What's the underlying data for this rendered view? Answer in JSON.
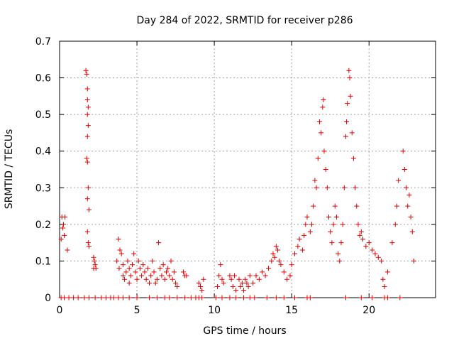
{
  "chart_data": {
    "type": "scatter",
    "title": "Day 284 of 2022, SRMTID for receiver p286",
    "xlabel": "GPS time / hours",
    "ylabel": "SRMTID / TECUs",
    "xlim": [
      0,
      24.3
    ],
    "ylim": [
      0,
      0.7
    ],
    "x_ticks": [
      0,
      5,
      10,
      15,
      20
    ],
    "y_ticks": [
      0,
      0.1,
      0.2,
      0.3,
      0.4,
      0.5,
      0.6,
      0.7
    ],
    "x_tick_labels": [
      "0",
      "5",
      "10",
      "15",
      "20"
    ],
    "y_tick_labels": [
      "0",
      "0.1",
      "0.2",
      "0.3",
      "0.4",
      "0.5",
      "0.6",
      "0.7"
    ],
    "grid": true,
    "marker": "+",
    "color": "#e00000",
    "series": [
      {
        "name": "p286",
        "points": [
          [
            0.1,
            0.16
          ],
          [
            0.15,
            0.22
          ],
          [
            0.2,
            0.19
          ],
          [
            0.25,
            0.2
          ],
          [
            0.3,
            0.17
          ],
          [
            0.35,
            0.22
          ],
          [
            0.5,
            0.13
          ],
          [
            1.7,
            0.62
          ],
          [
            1.75,
            0.61
          ],
          [
            1.8,
            0.57
          ],
          [
            1.8,
            0.54
          ],
          [
            1.85,
            0.52
          ],
          [
            1.8,
            0.5
          ],
          [
            1.85,
            0.47
          ],
          [
            1.8,
            0.44
          ],
          [
            1.75,
            0.38
          ],
          [
            1.8,
            0.37
          ],
          [
            1.85,
            0.3
          ],
          [
            1.8,
            0.27
          ],
          [
            1.9,
            0.24
          ],
          [
            1.8,
            0.18
          ],
          [
            1.85,
            0.15
          ],
          [
            1.9,
            0.14
          ],
          [
            2.2,
            0.11
          ],
          [
            2.25,
            0.1
          ],
          [
            2.3,
            0.09
          ],
          [
            2.35,
            0.08
          ],
          [
            2.2,
            0.08
          ],
          [
            3.7,
            0.1
          ],
          [
            3.8,
            0.16
          ],
          [
            3.9,
            0.13
          ],
          [
            3.85,
            0.08
          ],
          [
            4.0,
            0.12
          ],
          [
            4.1,
            0.09
          ],
          [
            4.1,
            0.06
          ],
          [
            4.2,
            0.05
          ],
          [
            4.3,
            0.07
          ],
          [
            4.4,
            0.1
          ],
          [
            4.5,
            0.08
          ],
          [
            4.5,
            0.04
          ],
          [
            4.6,
            0.06
          ],
          [
            4.7,
            0.09
          ],
          [
            4.8,
            0.12
          ],
          [
            4.9,
            0.07
          ],
          [
            5.0,
            0.05
          ],
          [
            5.1,
            0.1
          ],
          [
            5.2,
            0.08
          ],
          [
            5.3,
            0.06
          ],
          [
            5.4,
            0.09
          ],
          [
            5.5,
            0.07
          ],
          [
            5.6,
            0.05
          ],
          [
            5.7,
            0.08
          ],
          [
            5.8,
            0.04
          ],
          [
            5.9,
            0.06
          ],
          [
            6.0,
            0.1
          ],
          [
            6.1,
            0.07
          ],
          [
            6.2,
            0.04
          ],
          [
            6.3,
            0.05
          ],
          [
            6.4,
            0.15
          ],
          [
            6.5,
            0.08
          ],
          [
            6.6,
            0.06
          ],
          [
            6.7,
            0.09
          ],
          [
            6.8,
            0.05
          ],
          [
            6.9,
            0.07
          ],
          [
            7.0,
            0.08
          ],
          [
            7.1,
            0.06
          ],
          [
            7.2,
            0.1
          ],
          [
            7.3,
            0.05
          ],
          [
            7.4,
            0.07
          ],
          [
            7.5,
            0.04
          ],
          [
            7.6,
            0.03
          ],
          [
            8.0,
            0.07
          ],
          [
            8.1,
            0.06
          ],
          [
            8.2,
            0.06
          ],
          [
            9.0,
            0.04
          ],
          [
            9.1,
            0.03
          ],
          [
            9.2,
            0.02
          ],
          [
            9.3,
            0.05
          ],
          [
            10.2,
            0.03
          ],
          [
            10.3,
            0.06
          ],
          [
            10.4,
            0.09
          ],
          [
            10.5,
            0.05
          ],
          [
            10.6,
            0.04
          ],
          [
            11.0,
            0.06
          ],
          [
            11.1,
            0.05
          ],
          [
            11.2,
            0.03
          ],
          [
            11.3,
            0.06
          ],
          [
            11.4,
            0.02
          ],
          [
            11.6,
            0.05
          ],
          [
            11.7,
            0.03
          ],
          [
            11.8,
            0.04
          ],
          [
            11.9,
            0.02
          ],
          [
            12.0,
            0.05
          ],
          [
            12.1,
            0.04
          ],
          [
            12.2,
            0.03
          ],
          [
            12.3,
            0.06
          ],
          [
            12.5,
            0.04
          ],
          [
            12.7,
            0.06
          ],
          [
            12.9,
            0.05
          ],
          [
            13.1,
            0.07
          ],
          [
            13.3,
            0.06
          ],
          [
            13.5,
            0.08
          ],
          [
            13.7,
            0.1
          ],
          [
            13.8,
            0.12
          ],
          [
            13.9,
            0.11
          ],
          [
            14.0,
            0.14
          ],
          [
            14.1,
            0.13
          ],
          [
            14.2,
            0.1
          ],
          [
            14.3,
            0.09
          ],
          [
            14.5,
            0.07
          ],
          [
            14.7,
            0.05
          ],
          [
            14.9,
            0.06
          ],
          [
            15.0,
            0.09
          ],
          [
            15.2,
            0.12
          ],
          [
            15.4,
            0.14
          ],
          [
            15.5,
            0.16
          ],
          [
            15.7,
            0.13
          ],
          [
            15.8,
            0.17
          ],
          [
            15.9,
            0.2
          ],
          [
            16.0,
            0.22
          ],
          [
            16.2,
            0.18
          ],
          [
            16.3,
            0.2
          ],
          [
            16.4,
            0.25
          ],
          [
            16.5,
            0.32
          ],
          [
            16.6,
            0.3
          ],
          [
            16.7,
            0.38
          ],
          [
            16.8,
            0.48
          ],
          [
            16.9,
            0.45
          ],
          [
            17.0,
            0.52
          ],
          [
            17.05,
            0.54
          ],
          [
            17.1,
            0.4
          ],
          [
            17.2,
            0.35
          ],
          [
            17.3,
            0.3
          ],
          [
            17.4,
            0.22
          ],
          [
            17.5,
            0.18
          ],
          [
            17.6,
            0.15
          ],
          [
            17.7,
            0.2
          ],
          [
            17.8,
            0.25
          ],
          [
            17.9,
            0.22
          ],
          [
            18.0,
            0.12
          ],
          [
            18.1,
            0.1
          ],
          [
            18.2,
            0.15
          ],
          [
            18.3,
            0.2
          ],
          [
            18.4,
            0.3
          ],
          [
            18.5,
            0.44
          ],
          [
            18.55,
            0.48
          ],
          [
            18.6,
            0.53
          ],
          [
            18.7,
            0.62
          ],
          [
            18.75,
            0.6
          ],
          [
            18.8,
            0.55
          ],
          [
            18.9,
            0.45
          ],
          [
            19.0,
            0.38
          ],
          [
            19.1,
            0.3
          ],
          [
            19.2,
            0.25
          ],
          [
            19.3,
            0.2
          ],
          [
            19.4,
            0.17
          ],
          [
            19.5,
            0.18
          ],
          [
            19.6,
            0.16
          ],
          [
            19.8,
            0.14
          ],
          [
            20.0,
            0.15
          ],
          [
            20.2,
            0.13
          ],
          [
            20.4,
            0.12
          ],
          [
            20.6,
            0.11
          ],
          [
            20.8,
            0.1
          ],
          [
            20.9,
            0.05
          ],
          [
            21.0,
            0.03
          ],
          [
            21.2,
            0.07
          ],
          [
            21.5,
            0.15
          ],
          [
            21.7,
            0.2
          ],
          [
            21.8,
            0.25
          ],
          [
            21.9,
            0.32
          ],
          [
            22.2,
            0.4
          ],
          [
            22.3,
            0.35
          ],
          [
            22.4,
            0.3
          ],
          [
            22.5,
            0.25
          ],
          [
            22.6,
            0.28
          ],
          [
            22.7,
            0.22
          ],
          [
            22.8,
            0.18
          ],
          [
            22.9,
            0.1
          ],
          [
            0.1,
            0.0
          ],
          [
            0.3,
            0.0
          ],
          [
            0.6,
            0.0
          ],
          [
            0.9,
            0.0
          ],
          [
            1.2,
            0.0
          ],
          [
            1.6,
            0.0
          ],
          [
            1.9,
            0.0
          ],
          [
            2.3,
            0.0
          ],
          [
            2.7,
            0.0
          ],
          [
            3.0,
            0.0
          ],
          [
            3.3,
            0.0
          ],
          [
            3.5,
            0.0
          ],
          [
            3.8,
            0.0
          ],
          [
            4.1,
            0.0
          ],
          [
            4.5,
            0.0
          ],
          [
            5.0,
            0.0
          ],
          [
            5.8,
            0.0
          ],
          [
            6.3,
            0.0
          ],
          [
            6.8,
            0.0
          ],
          [
            7.1,
            0.0
          ],
          [
            7.6,
            0.0
          ],
          [
            8.1,
            0.0
          ],
          [
            8.5,
            0.0
          ],
          [
            8.8,
            0.0
          ],
          [
            9.0,
            0.0
          ],
          [
            9.2,
            0.0
          ],
          [
            10.1,
            0.0
          ],
          [
            10.5,
            0.0
          ],
          [
            11.0,
            0.0
          ],
          [
            11.4,
            0.0
          ],
          [
            11.9,
            0.0
          ],
          [
            12.3,
            0.0
          ],
          [
            12.6,
            0.0
          ],
          [
            13.4,
            0.0
          ],
          [
            14.0,
            0.0
          ],
          [
            14.5,
            0.0
          ],
          [
            15.2,
            0.0
          ],
          [
            16.0,
            0.0
          ],
          [
            16.2,
            0.0
          ],
          [
            18.5,
            0.0
          ],
          [
            19.5,
            0.0
          ],
          [
            20.2,
            0.0
          ],
          [
            21.0,
            0.0
          ],
          [
            21.2,
            0.0
          ],
          [
            22.0,
            0.0
          ]
        ]
      }
    ]
  }
}
